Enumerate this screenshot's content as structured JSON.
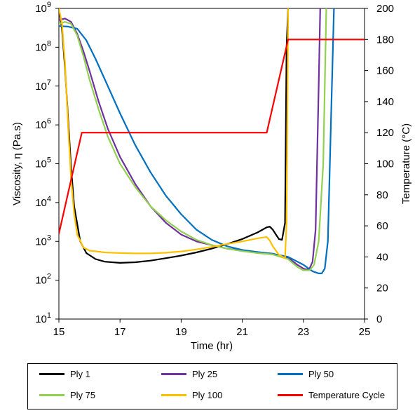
{
  "chart_data": {
    "type": "line",
    "title": "",
    "xlabel": "Time (hr)",
    "ylabel": "Viscosity, η (Pa.s)",
    "y2label": "Temperature (°C)",
    "xlim": [
      15,
      25
    ],
    "ylim": [
      10,
      1000000000
    ],
    "y2lim": [
      0,
      200
    ],
    "yscale": "log",
    "grid": false,
    "legend_position": "bottom",
    "x_ticks": [
      "15",
      "17",
      "19",
      "21",
      "23",
      "25"
    ],
    "y_ticks": [
      {
        "base": "10",
        "exp": "1"
      },
      {
        "base": "10",
        "exp": "2"
      },
      {
        "base": "10",
        "exp": "3"
      },
      {
        "base": "10",
        "exp": "4"
      },
      {
        "base": "10",
        "exp": "5"
      },
      {
        "base": "10",
        "exp": "6"
      },
      {
        "base": "10",
        "exp": "7"
      },
      {
        "base": "10",
        "exp": "8"
      },
      {
        "base": "10",
        "exp": "9"
      }
    ],
    "y2_ticks": [
      "0",
      "20",
      "40",
      "60",
      "80",
      "100",
      "120",
      "140",
      "160",
      "180",
      "200"
    ],
    "series": [
      {
        "name": "Ply 1",
        "color": "#000000",
        "axis": "left",
        "x": [
          15.0,
          15.1,
          15.2,
          15.3,
          15.4,
          15.5,
          15.7,
          15.9,
          16.2,
          16.5,
          17.0,
          17.5,
          18.0,
          18.5,
          19.0,
          19.5,
          20.0,
          20.5,
          21.0,
          21.5,
          21.8,
          21.9,
          22.0,
          22.1,
          22.2,
          22.3,
          22.4,
          22.45,
          22.5
        ],
        "y": [
          1000000000,
          300000000,
          30000000,
          1500000,
          80000,
          8000,
          1000,
          500,
          350,
          300,
          280,
          290,
          320,
          370,
          430,
          520,
          650,
          850,
          1150,
          1700,
          2300,
          2400,
          2000,
          1500,
          1150,
          1100,
          3000,
          100000000,
          1000000000
        ]
      },
      {
        "name": "Ply 25",
        "color": "#7030A0",
        "axis": "left",
        "x": [
          15.0,
          15.2,
          15.4,
          15.6,
          15.8,
          16.0,
          16.3,
          16.6,
          17.0,
          17.5,
          18.0,
          18.5,
          19.0,
          19.5,
          20.0,
          20.5,
          21.0,
          21.5,
          22.0,
          22.5,
          22.8,
          23.0,
          23.1,
          23.2,
          23.3,
          23.4,
          23.5,
          23.55
        ],
        "y": [
          500000000,
          550000000,
          450000000,
          220000000,
          80000000,
          25000000,
          4000000,
          800000,
          150000,
          30000,
          8000,
          3000,
          1500,
          1000,
          800,
          650,
          580,
          530,
          480,
          380,
          250,
          200,
          190,
          200,
          300,
          2000,
          10000000,
          1000000000
        ]
      },
      {
        "name": "Ply 50",
        "color": "#0070C0",
        "axis": "left",
        "x": [
          15.0,
          15.3,
          15.6,
          15.9,
          16.2,
          16.5,
          17.0,
          17.5,
          18.0,
          18.5,
          19.0,
          19.5,
          20.0,
          20.5,
          21.0,
          21.5,
          22.0,
          22.5,
          23.0,
          23.3,
          23.5,
          23.6,
          23.7,
          23.8,
          23.9,
          24.0
        ],
        "y": [
          350000000,
          340000000,
          300000000,
          150000000,
          50000000,
          15000000,
          2000000,
          300000,
          60000,
          15000,
          5000,
          2000,
          1100,
          750,
          600,
          530,
          480,
          400,
          250,
          170,
          150,
          150,
          200,
          1000,
          1000000,
          1000000000
        ]
      },
      {
        "name": "Ply 75",
        "color": "#92D050",
        "axis": "left",
        "x": [
          15.0,
          15.2,
          15.4,
          15.6,
          15.8,
          16.0,
          16.3,
          16.6,
          17.0,
          17.5,
          18.0,
          18.5,
          19.0,
          19.5,
          20.0,
          20.5,
          21.0,
          21.5,
          22.0,
          22.5,
          22.8,
          23.0,
          23.2,
          23.35,
          23.5,
          23.65,
          23.75
        ],
        "y": [
          400000000,
          450000000,
          400000000,
          200000000,
          60000000,
          15000000,
          2500000,
          500000,
          100000,
          25000,
          8000,
          3500,
          1800,
          1100,
          800,
          650,
          560,
          500,
          460,
          350,
          220,
          180,
          180,
          250,
          1000,
          100000,
          1000000000
        ]
      },
      {
        "name": "Ply 100",
        "color": "#FFC000",
        "axis": "left",
        "x": [
          15.0,
          15.1,
          15.2,
          15.3,
          15.4,
          15.5,
          15.6,
          15.8,
          16.0,
          16.5,
          17.0,
          17.5,
          18.0,
          18.5,
          19.0,
          19.5,
          20.0,
          20.5,
          21.0,
          21.5,
          21.8,
          21.9,
          22.0,
          22.2,
          22.4,
          22.45,
          22.5
        ],
        "y": [
          1000000000,
          400000000,
          40000000,
          1000000,
          40000,
          5000,
          1500,
          700,
          580,
          520,
          500,
          490,
          490,
          510,
          550,
          620,
          720,
          860,
          1000,
          1200,
          1300,
          1050,
          750,
          450,
          370,
          3000,
          1000000000
        ]
      },
      {
        "name": "Temperature Cycle",
        "color": "#FF0000",
        "axis": "right",
        "x": [
          15.0,
          15.75,
          21.8,
          22.5,
          25.0
        ],
        "y": [
          55,
          120,
          120,
          180,
          180
        ]
      }
    ]
  }
}
